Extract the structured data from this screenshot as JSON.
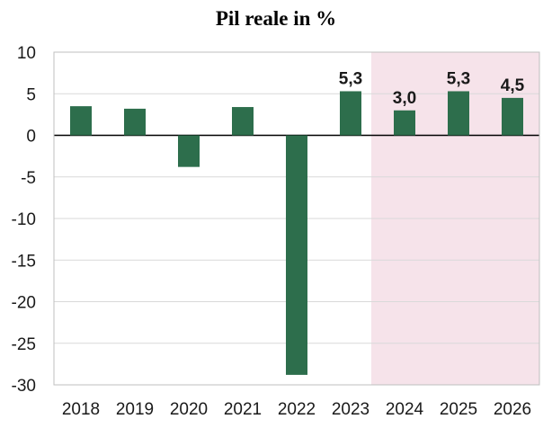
{
  "chart_data": {
    "type": "bar",
    "title": "Pil reale in %",
    "xlabel": "",
    "ylabel": "",
    "categories": [
      "2018",
      "2019",
      "2020",
      "2021",
      "2022",
      "2023",
      "2024",
      "2025",
      "2026"
    ],
    "values": [
      3.5,
      3.2,
      -3.8,
      3.4,
      -28.8,
      5.3,
      3.0,
      5.3,
      4.5
    ],
    "data_labels": [
      "",
      "",
      "",
      "",
      "",
      "5,3",
      "3,0",
      "5,3",
      "4,5"
    ],
    "ylim": [
      -30,
      10
    ],
    "yticks": [
      10,
      5,
      0,
      -5,
      -10,
      -15,
      -20,
      -25,
      -30
    ],
    "grid": true,
    "forecast_shading_from": "2024",
    "colors": {
      "bar": "#2d6e4c",
      "forecast_band": "#f6e3ea",
      "grid": "#d9d9d9",
      "zero_line": "#000000"
    }
  }
}
